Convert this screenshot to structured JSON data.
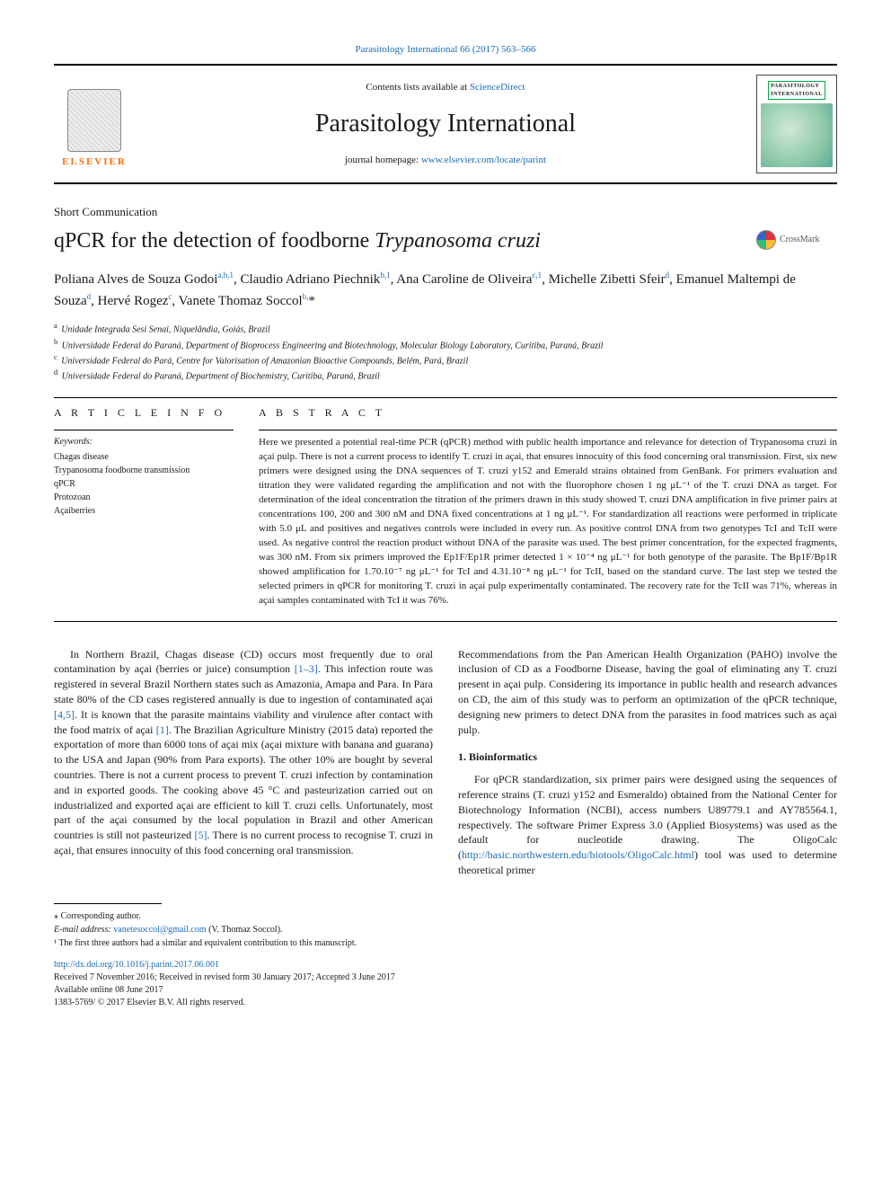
{
  "top_citation": "Parasitology International 66 (2017) 563–566",
  "header": {
    "contents_prefix": "Contents lists available at ",
    "contents_link": "ScienceDirect",
    "journal": "Parasitology International",
    "homepage_prefix": "journal homepage: ",
    "homepage_link": "www.elsevier.com/locate/parint",
    "elsevier_label": "ELSEVIER",
    "cover_line1": "PARASITOLOGY",
    "cover_line2": "INTERNATIONAL"
  },
  "article_type": "Short Communication",
  "title_plain": "qPCR for the detection of foodborne ",
  "title_ital": "Trypanosoma cruzi",
  "crossmark": "CrossMark",
  "authors_html": "Poliana Alves de Souza Godoi<sup>a,b,1</sup>, Claudio Adriano Piechnik<sup>b,1</sup>, Ana Caroline de Oliveira<sup>c,1</sup>, Michelle Zibetti Sfeir<sup>d</sup>, Emanuel Maltempi de Souza<sup>d</sup>, Hervé Rogez<sup>c</sup>, Vanete Thomaz Soccol<sup>b,</sup>*",
  "affiliations": [
    "a Unidade Integrada Sesi Senai, Niquelândia, Goiás, Brazil",
    "b Universidade Federal do Paraná, Department of Bioprocess Engineering and Biotechnology, Molecular Biology Laboratory, Curitiba, Paraná, Brazil",
    "c Universidade Federal do Pará, Centre for Valorisation of Amazonian Bioactive Compounds, Belém, Pará, Brazil",
    "d Universidade Federal do Paraná, Department of Biochemistry, Curitiba, Paraná, Brazil"
  ],
  "article_info_label": "A R T I C L E  I N F O",
  "abstract_label": "A B S T R A C T",
  "keywords_label": "Keywords:",
  "keywords": [
    "Chagas disease",
    "Trypanosoma foodborne transmission",
    "qPCR",
    "Protozoan",
    "Açaiberries"
  ],
  "abstract_text": "Here we presented a potential real-time PCR (qPCR) method with public health importance and relevance for detection of Trypanosoma cruzi in açai pulp. There is not a current process to identify T. cruzi in açai, that ensures innocuity of this food concerning oral transmission. First, six new primers were designed using the DNA sequences of T. cruzi y152 and Emerald strains obtained from GenBank. For primers evaluation and titration they were validated regarding the amplification and not with the fluorophore chosen 1 ng μL⁻¹ of the T. cruzi DNA as target. For determination of the ideal concentration the titration of the primers drawn in this study showed T. cruzi DNA amplification in five primer pairs at concentrations 100, 200 and 300 nM and DNA fixed concentrations at 1 ng μL⁻¹. For standardization all reactions were performed in triplicate with 5.0 μL and positives and negatives controls were included in every run. As positive control DNA from two genotypes TcI and TcII were used. As negative control the reaction product without DNA of the parasite was used. The best primer concentration, for the expected fragments, was 300 nM. From six primers improved the Ep1F/Ep1R primer detected 1 × 10⁻⁴ ng μL⁻¹ for both genotype of the parasite. The Bp1F/Bp1R showed amplification for 1.70.10⁻⁷ ng μL⁻¹ for TcI and 4.31.10⁻⁸ ng μL⁻¹ for TcII, based on the standard curve. The last step we tested the selected primers in qPCR for monitoring T. cruzi in açai pulp experimentally contaminated. The recovery rate for the TcII was 71%, whereas in açai samples contaminated with TcI it was 76%.",
  "body": {
    "p1_a": "In Northern Brazil, Chagas disease (CD) occurs most frequently due to oral contamination by açai (berries or juice) consumption ",
    "p1_ref1": "[1–3]",
    "p1_b": ". This infection route was registered in several Brazil Northern states such as Amazonia, Amapa and Para. In Para state 80% of the CD cases registered annually is due to ingestion of contaminated açai ",
    "p1_ref2": "[4,5]",
    "p1_c": ". It is known that the parasite maintains viability and virulence after contact with the food matrix of açai ",
    "p1_ref3": "[1]",
    "p1_d": ". The Brazilian Agriculture Ministry (2015 data) reported the exportation of more than 6000 tons of açai mix (açai mixture with banana and guarana) to the USA and Japan (90% from Para exports). The other 10% are bought by several countries. There is not a current process to prevent T. cruzi infection by contamination and in exported goods. The cooking above 45 °C and pasteurization carried out on industrialized and exported açai are efficient to kill T. cruzi cells. Unfortunately, most part of the açai consumed by the local population in Brazil and other American countries is still not pasteurized ",
    "p1_ref4": "[5]",
    "p1_e": ". There is no current process to recognise T. cruzi in açai, that ensures innocuity of this food concerning oral transmission.",
    "p2": "Recommendations from the Pan American Health Organization (PAHO) involve the inclusion of CD as a Foodborne Disease, having the goal of eliminating any T. cruzi present in açai pulp. Considering its importance in public health and research advances on CD, the aim of this study was to perform an optimization of the qPCR technique, designing new primers to detect DNA from the parasites in food matrices such as açai pulp.",
    "h1": "1. Bioinformatics",
    "p3_a": "For qPCR standardization, six primer pairs were designed using the sequences of reference strains (T. cruzi y152 and Esmeraldo) obtained from the National Center for Biotechnology Information (NCBI), access numbers U89779.1 and AY785564.1, respectively. The software Primer Express 3.0 (Applied Biosystems) was used as the default for nucleotide drawing. The OligoCalc (",
    "p3_link": "http://basic.northwestern.edu/biotools/OligoCalc.html",
    "p3_b": ") tool was used to determine theoretical primer"
  },
  "footnotes": {
    "corr": "⁎ Corresponding author.",
    "email_label": "E-mail address: ",
    "email": "vanetesoccol@gmail.com",
    "email_suffix": " (V. Thomaz Soccol).",
    "contrib": "¹ The first three authors had a similar and equivalent contribution to this manuscript."
  },
  "doi": {
    "link": "http://dx.doi.org/10.1016/j.parint.2017.06.001",
    "history": "Received 7 November 2016; Received in revised form 30 January 2017; Accepted 3 June 2017",
    "online": "Available online 08 June 2017",
    "copyright": "1383-5769/ © 2017 Elsevier B.V. All rights reserved."
  },
  "colors": {
    "link": "#1a6bb8",
    "elsevier_orange": "#ff6a00",
    "text": "#1a1a1a",
    "rule": "#000000"
  },
  "typography": {
    "journal_name_pt": 28,
    "title_pt": 24,
    "authors_pt": 15,
    "body_pt": 12,
    "abstract_pt": 11,
    "small_pt": 10
  }
}
